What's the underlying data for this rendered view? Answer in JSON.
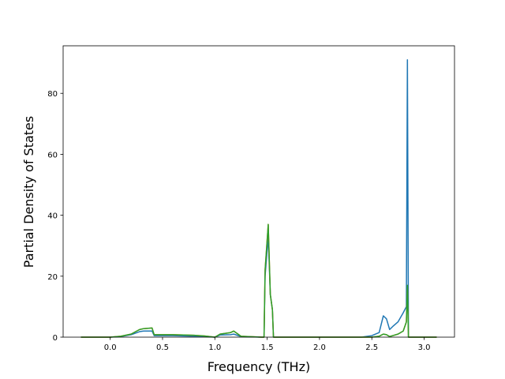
{
  "chart_data": {
    "type": "line",
    "xlabel": "Frequency (THz)",
    "ylabel": "Partial Density of States",
    "x": [
      -0.28,
      0.0,
      0.1,
      0.2,
      0.28,
      0.32,
      0.4,
      0.42,
      0.6,
      0.8,
      0.9,
      1.0,
      1.05,
      1.15,
      1.18,
      1.25,
      1.45,
      1.47,
      1.48,
      1.51,
      1.53,
      1.55,
      1.56,
      1.6,
      2.0,
      2.4,
      2.5,
      2.57,
      2.61,
      2.64,
      2.67,
      2.7,
      2.75,
      2.8,
      2.83,
      2.84,
      2.85,
      2.86,
      3.12
    ],
    "series": [
      {
        "color": "#1f77b4",
        "values": [
          0,
          0,
          0.2,
          0.8,
          1.8,
          2,
          2,
          0.5,
          0.5,
          0.3,
          0.2,
          0,
          0.7,
          0.8,
          1,
          0.2,
          0,
          0,
          20,
          33,
          14,
          9,
          0,
          0,
          0,
          0,
          0.5,
          1.5,
          7,
          6,
          2.5,
          3.5,
          5,
          8,
          10,
          91,
          0,
          0,
          0
        ]
      },
      {
        "color": "#ff7f0e",
        "values": [
          0,
          0,
          0.3,
          1,
          2.5,
          2.8,
          3,
          0.8,
          0.8,
          0.6,
          0.4,
          0,
          1,
          1.5,
          2,
          0.3,
          0,
          0,
          22,
          37,
          14,
          9,
          0,
          0,
          0,
          0,
          0,
          0.3,
          1,
          0.8,
          0.2,
          0.5,
          1,
          2,
          5,
          17,
          0,
          0,
          0
        ]
      },
      {
        "color": "#2ca02c",
        "values": [
          0,
          0,
          0.3,
          1,
          2.5,
          2.8,
          3,
          0.8,
          0.8,
          0.6,
          0.4,
          0,
          1,
          1.5,
          2,
          0.3,
          0,
          0,
          22,
          37,
          14,
          9,
          0,
          0,
          0,
          0,
          0,
          0.3,
          1,
          0.8,
          0.2,
          0.5,
          1,
          2,
          5,
          17,
          0,
          0,
          0
        ]
      }
    ],
    "xlim": [
      -0.45,
      3.29
    ],
    "ylim": [
      0,
      95.6
    ],
    "xticks": [
      {
        "value": 0,
        "label": "0.0"
      },
      0.5,
      {
        "value": 1,
        "label": "1.0"
      },
      1.5,
      {
        "value": 2,
        "label": "2.0"
      },
      2.5,
      {
        "value": 3,
        "label": "3.0"
      }
    ],
    "yticks": [
      0,
      20,
      40,
      60,
      80
    ]
  }
}
